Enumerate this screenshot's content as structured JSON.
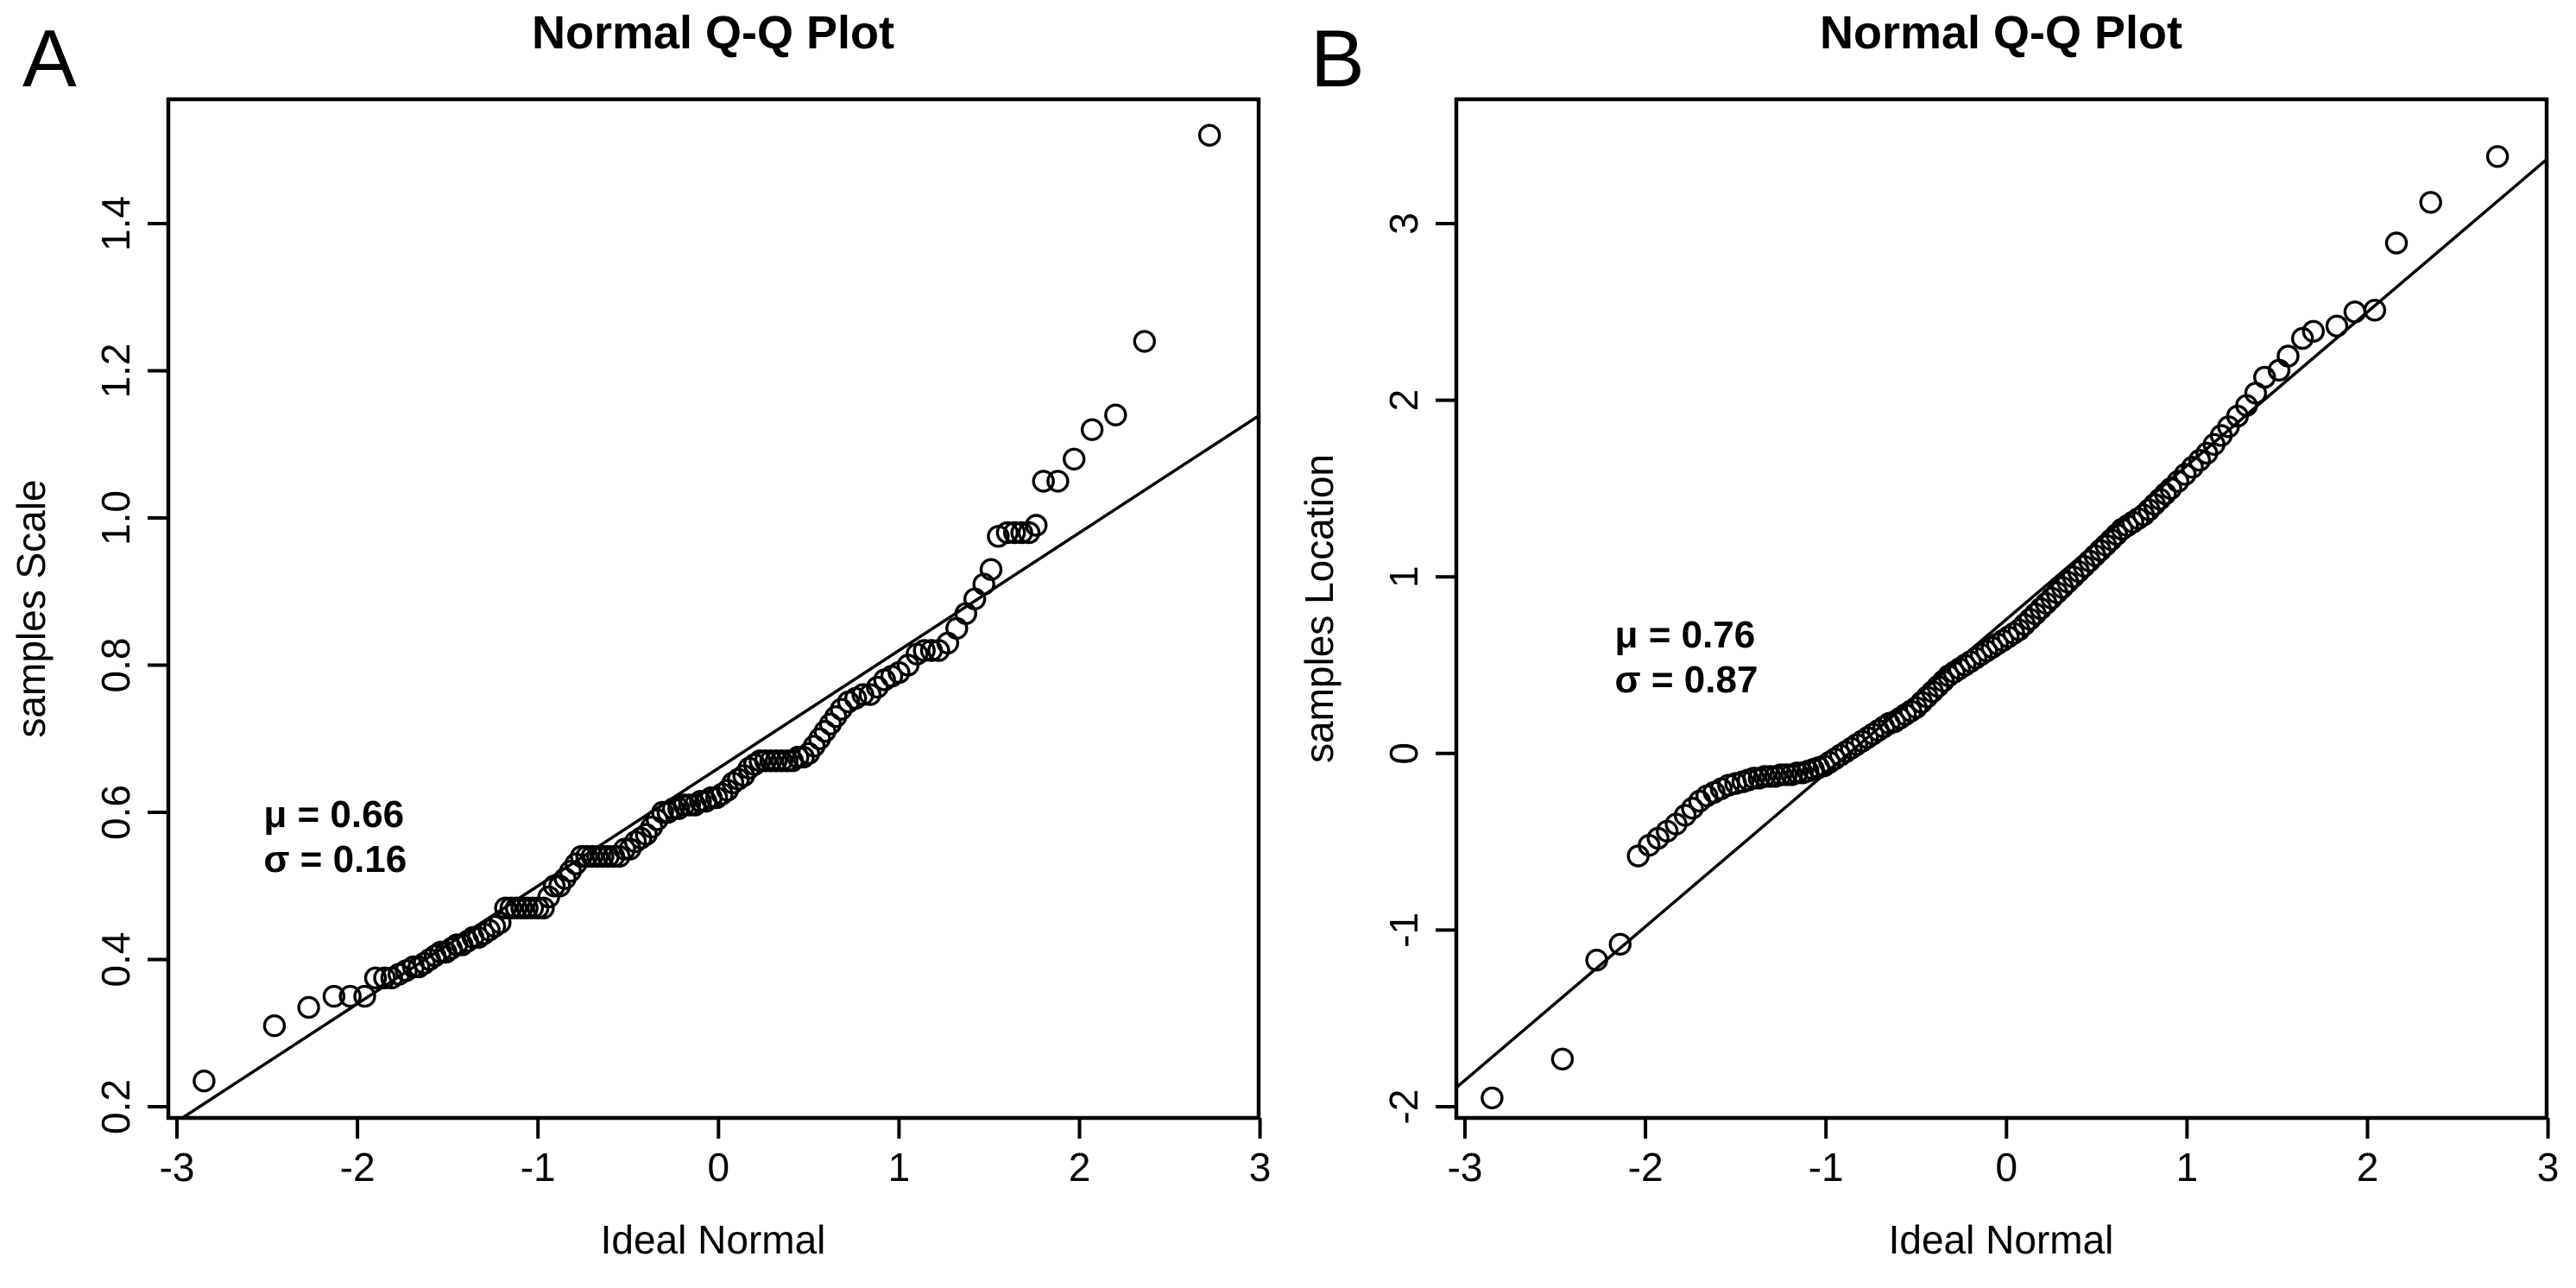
{
  "figure_background": "#ffffff",
  "point_color": "#000000",
  "line_color": "#000000",
  "chart_data": [
    {
      "type": "scatter",
      "panel_label": "A",
      "title": "Normal Q-Q Plot",
      "xlabel": "Ideal Normal",
      "ylabel": "samples Scale",
      "xlim": [
        -3,
        3
      ],
      "ylim": [
        0.2,
        1.4
      ],
      "xticks": [
        -3,
        -2,
        -1,
        0,
        1,
        2,
        3
      ],
      "xtick_labels": [
        "-3",
        "-2",
        "-1",
        "0",
        "1",
        "2",
        "3"
      ],
      "yticks": [
        0.2,
        0.4,
        0.6,
        0.8,
        1.0,
        1.2,
        1.4
      ],
      "ytick_labels": [
        "0.2",
        "0.4",
        "0.6",
        "0.8",
        "1.0",
        "1.2",
        "1.4"
      ],
      "grid": false,
      "legend": null,
      "annotation": [
        "μ =  0.66",
        "σ =  0.16"
      ],
      "annotation_xy": [
        -2.52,
        0.58
      ],
      "mu": 0.66,
      "sigma": 0.16,
      "line": {
        "intercept": 0.66,
        "slope": 0.16
      },
      "points": [
        [
          -2.85,
          0.235
        ],
        [
          -2.46,
          0.31
        ],
        [
          -2.27,
          0.335
        ],
        [
          -2.13,
          0.35
        ],
        [
          -2.04,
          0.35
        ],
        [
          -1.96,
          0.35
        ],
        [
          -1.9,
          0.375
        ],
        [
          -1.85,
          0.375
        ],
        [
          -1.81,
          0.375
        ],
        [
          -1.77,
          0.38
        ],
        [
          -1.73,
          0.385
        ],
        [
          -1.69,
          0.39
        ],
        [
          -1.66,
          0.39
        ],
        [
          -1.63,
          0.395
        ],
        [
          -1.6,
          0.4
        ],
        [
          -1.57,
          0.405
        ],
        [
          -1.54,
          0.41
        ],
        [
          -1.51,
          0.41
        ],
        [
          -1.48,
          0.415
        ],
        [
          -1.45,
          0.42
        ],
        [
          -1.42,
          0.42
        ],
        [
          -1.39,
          0.425
        ],
        [
          -1.36,
          0.43
        ],
        [
          -1.33,
          0.43
        ],
        [
          -1.3,
          0.435
        ],
        [
          -1.27,
          0.44
        ],
        [
          -1.24,
          0.445
        ],
        [
          -1.21,
          0.45
        ],
        [
          -1.18,
          0.47
        ],
        [
          -1.15,
          0.47
        ],
        [
          -1.12,
          0.47
        ],
        [
          -1.09,
          0.47
        ],
        [
          -1.06,
          0.47
        ],
        [
          -1.03,
          0.47
        ],
        [
          -1.0,
          0.47
        ],
        [
          -0.97,
          0.47
        ],
        [
          -0.94,
          0.485
        ],
        [
          -0.91,
          0.5
        ],
        [
          -0.88,
          0.5
        ],
        [
          -0.85,
          0.51
        ],
        [
          -0.82,
          0.52
        ],
        [
          -0.79,
          0.53
        ],
        [
          -0.76,
          0.54
        ],
        [
          -0.73,
          0.54
        ],
        [
          -0.7,
          0.54
        ],
        [
          -0.67,
          0.54
        ],
        [
          -0.64,
          0.54
        ],
        [
          -0.61,
          0.54
        ],
        [
          -0.58,
          0.54
        ],
        [
          -0.55,
          0.54
        ],
        [
          -0.52,
          0.55
        ],
        [
          -0.49,
          0.55
        ],
        [
          -0.46,
          0.56
        ],
        [
          -0.43,
          0.565
        ],
        [
          -0.4,
          0.57
        ],
        [
          -0.37,
          0.58
        ],
        [
          -0.34,
          0.59
        ],
        [
          -0.31,
          0.6
        ],
        [
          -0.28,
          0.6
        ],
        [
          -0.25,
          0.605
        ],
        [
          -0.22,
          0.605
        ],
        [
          -0.19,
          0.61
        ],
        [
          -0.16,
          0.61
        ],
        [
          -0.13,
          0.61
        ],
        [
          -0.1,
          0.615
        ],
        [
          -0.07,
          0.615
        ],
        [
          -0.04,
          0.62
        ],
        [
          -0.01,
          0.62
        ],
        [
          0.02,
          0.625
        ],
        [
          0.05,
          0.63
        ],
        [
          0.08,
          0.64
        ],
        [
          0.11,
          0.645
        ],
        [
          0.14,
          0.65
        ],
        [
          0.17,
          0.66
        ],
        [
          0.2,
          0.665
        ],
        [
          0.23,
          0.67
        ],
        [
          0.26,
          0.67
        ],
        [
          0.29,
          0.67
        ],
        [
          0.32,
          0.67
        ],
        [
          0.35,
          0.67
        ],
        [
          0.38,
          0.67
        ],
        [
          0.41,
          0.67
        ],
        [
          0.44,
          0.675
        ],
        [
          0.47,
          0.675
        ],
        [
          0.5,
          0.68
        ],
        [
          0.53,
          0.69
        ],
        [
          0.56,
          0.7
        ],
        [
          0.59,
          0.71
        ],
        [
          0.62,
          0.72
        ],
        [
          0.65,
          0.73
        ],
        [
          0.68,
          0.74
        ],
        [
          0.72,
          0.75
        ],
        [
          0.76,
          0.755
        ],
        [
          0.8,
          0.76
        ],
        [
          0.84,
          0.76
        ],
        [
          0.88,
          0.77
        ],
        [
          0.92,
          0.78
        ],
        [
          0.96,
          0.785
        ],
        [
          1.0,
          0.79
        ],
        [
          1.05,
          0.8
        ],
        [
          1.1,
          0.815
        ],
        [
          1.14,
          0.82
        ],
        [
          1.18,
          0.82
        ],
        [
          1.22,
          0.82
        ],
        [
          1.27,
          0.83
        ],
        [
          1.32,
          0.85
        ],
        [
          1.37,
          0.87
        ],
        [
          1.42,
          0.89
        ],
        [
          1.47,
          0.91
        ],
        [
          1.51,
          0.93
        ],
        [
          1.55,
          0.975
        ],
        [
          1.6,
          0.98
        ],
        [
          1.64,
          0.98
        ],
        [
          1.68,
          0.98
        ],
        [
          1.72,
          0.98
        ],
        [
          1.76,
          0.99
        ],
        [
          1.8,
          1.05
        ],
        [
          1.88,
          1.05
        ],
        [
          1.97,
          1.08
        ],
        [
          2.07,
          1.12
        ],
        [
          2.2,
          1.14
        ],
        [
          2.36,
          1.24
        ],
        [
          2.72,
          1.52
        ]
      ]
    },
    {
      "type": "scatter",
      "panel_label": "B",
      "title": "Normal Q-Q Plot",
      "xlabel": "Ideal Normal",
      "ylabel": "samples Location",
      "xlim": [
        -3,
        3
      ],
      "ylim": [
        -2,
        3
      ],
      "xticks": [
        -3,
        -2,
        -1,
        0,
        1,
        2,
        3
      ],
      "xtick_labels": [
        "-3",
        "-2",
        "-1",
        "0",
        "1",
        "2",
        "3"
      ],
      "yticks": [
        -2,
        -1,
        0,
        1,
        2,
        3
      ],
      "ytick_labels": [
        "-2",
        "-1",
        "0",
        "1",
        "2",
        "3"
      ],
      "grid": false,
      "legend": null,
      "annotation": [
        "μ =  0.76",
        "σ =  0.87"
      ],
      "annotation_xy": [
        -2.17,
        0.6
      ],
      "mu": 0.76,
      "sigma": 0.87,
      "line": {
        "intercept": 0.76,
        "slope": 0.87
      },
      "points": [
        [
          -2.85,
          -1.95
        ],
        [
          -2.46,
          -1.73
        ],
        [
          -2.27,
          -1.17
        ],
        [
          -2.14,
          -1.08
        ],
        [
          -2.04,
          -0.58
        ],
        [
          -1.98,
          -0.52
        ],
        [
          -1.93,
          -0.48
        ],
        [
          -1.88,
          -0.44
        ],
        [
          -1.83,
          -0.4
        ],
        [
          -1.78,
          -0.35
        ],
        [
          -1.74,
          -0.31
        ],
        [
          -1.7,
          -0.27
        ],
        [
          -1.66,
          -0.24
        ],
        [
          -1.62,
          -0.22
        ],
        [
          -1.58,
          -0.2
        ],
        [
          -1.54,
          -0.18
        ],
        [
          -1.5,
          -0.17
        ],
        [
          -1.46,
          -0.16
        ],
        [
          -1.43,
          -0.15
        ],
        [
          -1.4,
          -0.14
        ],
        [
          -1.37,
          -0.14
        ],
        [
          -1.34,
          -0.13
        ],
        [
          -1.31,
          -0.13
        ],
        [
          -1.28,
          -0.13
        ],
        [
          -1.25,
          -0.12
        ],
        [
          -1.22,
          -0.12
        ],
        [
          -1.19,
          -0.12
        ],
        [
          -1.16,
          -0.11
        ],
        [
          -1.13,
          -0.11
        ],
        [
          -1.1,
          -0.1
        ],
        [
          -1.07,
          -0.09
        ],
        [
          -1.04,
          -0.08
        ],
        [
          -1.01,
          -0.07
        ],
        [
          -0.98,
          -0.05
        ],
        [
          -0.95,
          -0.03
        ],
        [
          -0.92,
          -0.01
        ],
        [
          -0.89,
          0.01
        ],
        [
          -0.86,
          0.03
        ],
        [
          -0.83,
          0.05
        ],
        [
          -0.8,
          0.07
        ],
        [
          -0.77,
          0.09
        ],
        [
          -0.74,
          0.11
        ],
        [
          -0.71,
          0.13
        ],
        [
          -0.68,
          0.15
        ],
        [
          -0.65,
          0.17
        ],
        [
          -0.62,
          0.18
        ],
        [
          -0.59,
          0.2
        ],
        [
          -0.56,
          0.22
        ],
        [
          -0.53,
          0.24
        ],
        [
          -0.5,
          0.26
        ],
        [
          -0.47,
          0.29
        ],
        [
          -0.44,
          0.32
        ],
        [
          -0.41,
          0.35
        ],
        [
          -0.38,
          0.38
        ],
        [
          -0.35,
          0.41
        ],
        [
          -0.32,
          0.44
        ],
        [
          -0.29,
          0.46
        ],
        [
          -0.26,
          0.48
        ],
        [
          -0.23,
          0.5
        ],
        [
          -0.2,
          0.52
        ],
        [
          -0.17,
          0.54
        ],
        [
          -0.14,
          0.56
        ],
        [
          -0.11,
          0.58
        ],
        [
          -0.08,
          0.6
        ],
        [
          -0.05,
          0.62
        ],
        [
          -0.02,
          0.64
        ],
        [
          0.01,
          0.66
        ],
        [
          0.04,
          0.68
        ],
        [
          0.07,
          0.7
        ],
        [
          0.1,
          0.73
        ],
        [
          0.13,
          0.76
        ],
        [
          0.16,
          0.79
        ],
        [
          0.19,
          0.82
        ],
        [
          0.22,
          0.85
        ],
        [
          0.25,
          0.88
        ],
        [
          0.28,
          0.91
        ],
        [
          0.31,
          0.94
        ],
        [
          0.34,
          0.97
        ],
        [
          0.37,
          1.0
        ],
        [
          0.4,
          1.03
        ],
        [
          0.43,
          1.06
        ],
        [
          0.46,
          1.09
        ],
        [
          0.49,
          1.12
        ],
        [
          0.52,
          1.15
        ],
        [
          0.55,
          1.18
        ],
        [
          0.58,
          1.21
        ],
        [
          0.61,
          1.24
        ],
        [
          0.64,
          1.27
        ],
        [
          0.67,
          1.29
        ],
        [
          0.7,
          1.31
        ],
        [
          0.73,
          1.33
        ],
        [
          0.76,
          1.35
        ],
        [
          0.79,
          1.38
        ],
        [
          0.82,
          1.41
        ],
        [
          0.85,
          1.44
        ],
        [
          0.88,
          1.47
        ],
        [
          0.91,
          1.5
        ],
        [
          0.95,
          1.54
        ],
        [
          0.99,
          1.58
        ],
        [
          1.03,
          1.62
        ],
        [
          1.07,
          1.66
        ],
        [
          1.11,
          1.7
        ],
        [
          1.15,
          1.75
        ],
        [
          1.19,
          1.8
        ],
        [
          1.23,
          1.85
        ],
        [
          1.28,
          1.91
        ],
        [
          1.33,
          1.97
        ],
        [
          1.38,
          2.04
        ],
        [
          1.43,
          2.13
        ],
        [
          1.51,
          2.17
        ],
        [
          1.56,
          2.25
        ],
        [
          1.64,
          2.35
        ],
        [
          1.7,
          2.39
        ],
        [
          1.83,
          2.42
        ],
        [
          1.93,
          2.5
        ],
        [
          2.04,
          2.51
        ],
        [
          2.16,
          2.89
        ],
        [
          2.35,
          3.12
        ],
        [
          2.72,
          3.38
        ]
      ]
    }
  ]
}
